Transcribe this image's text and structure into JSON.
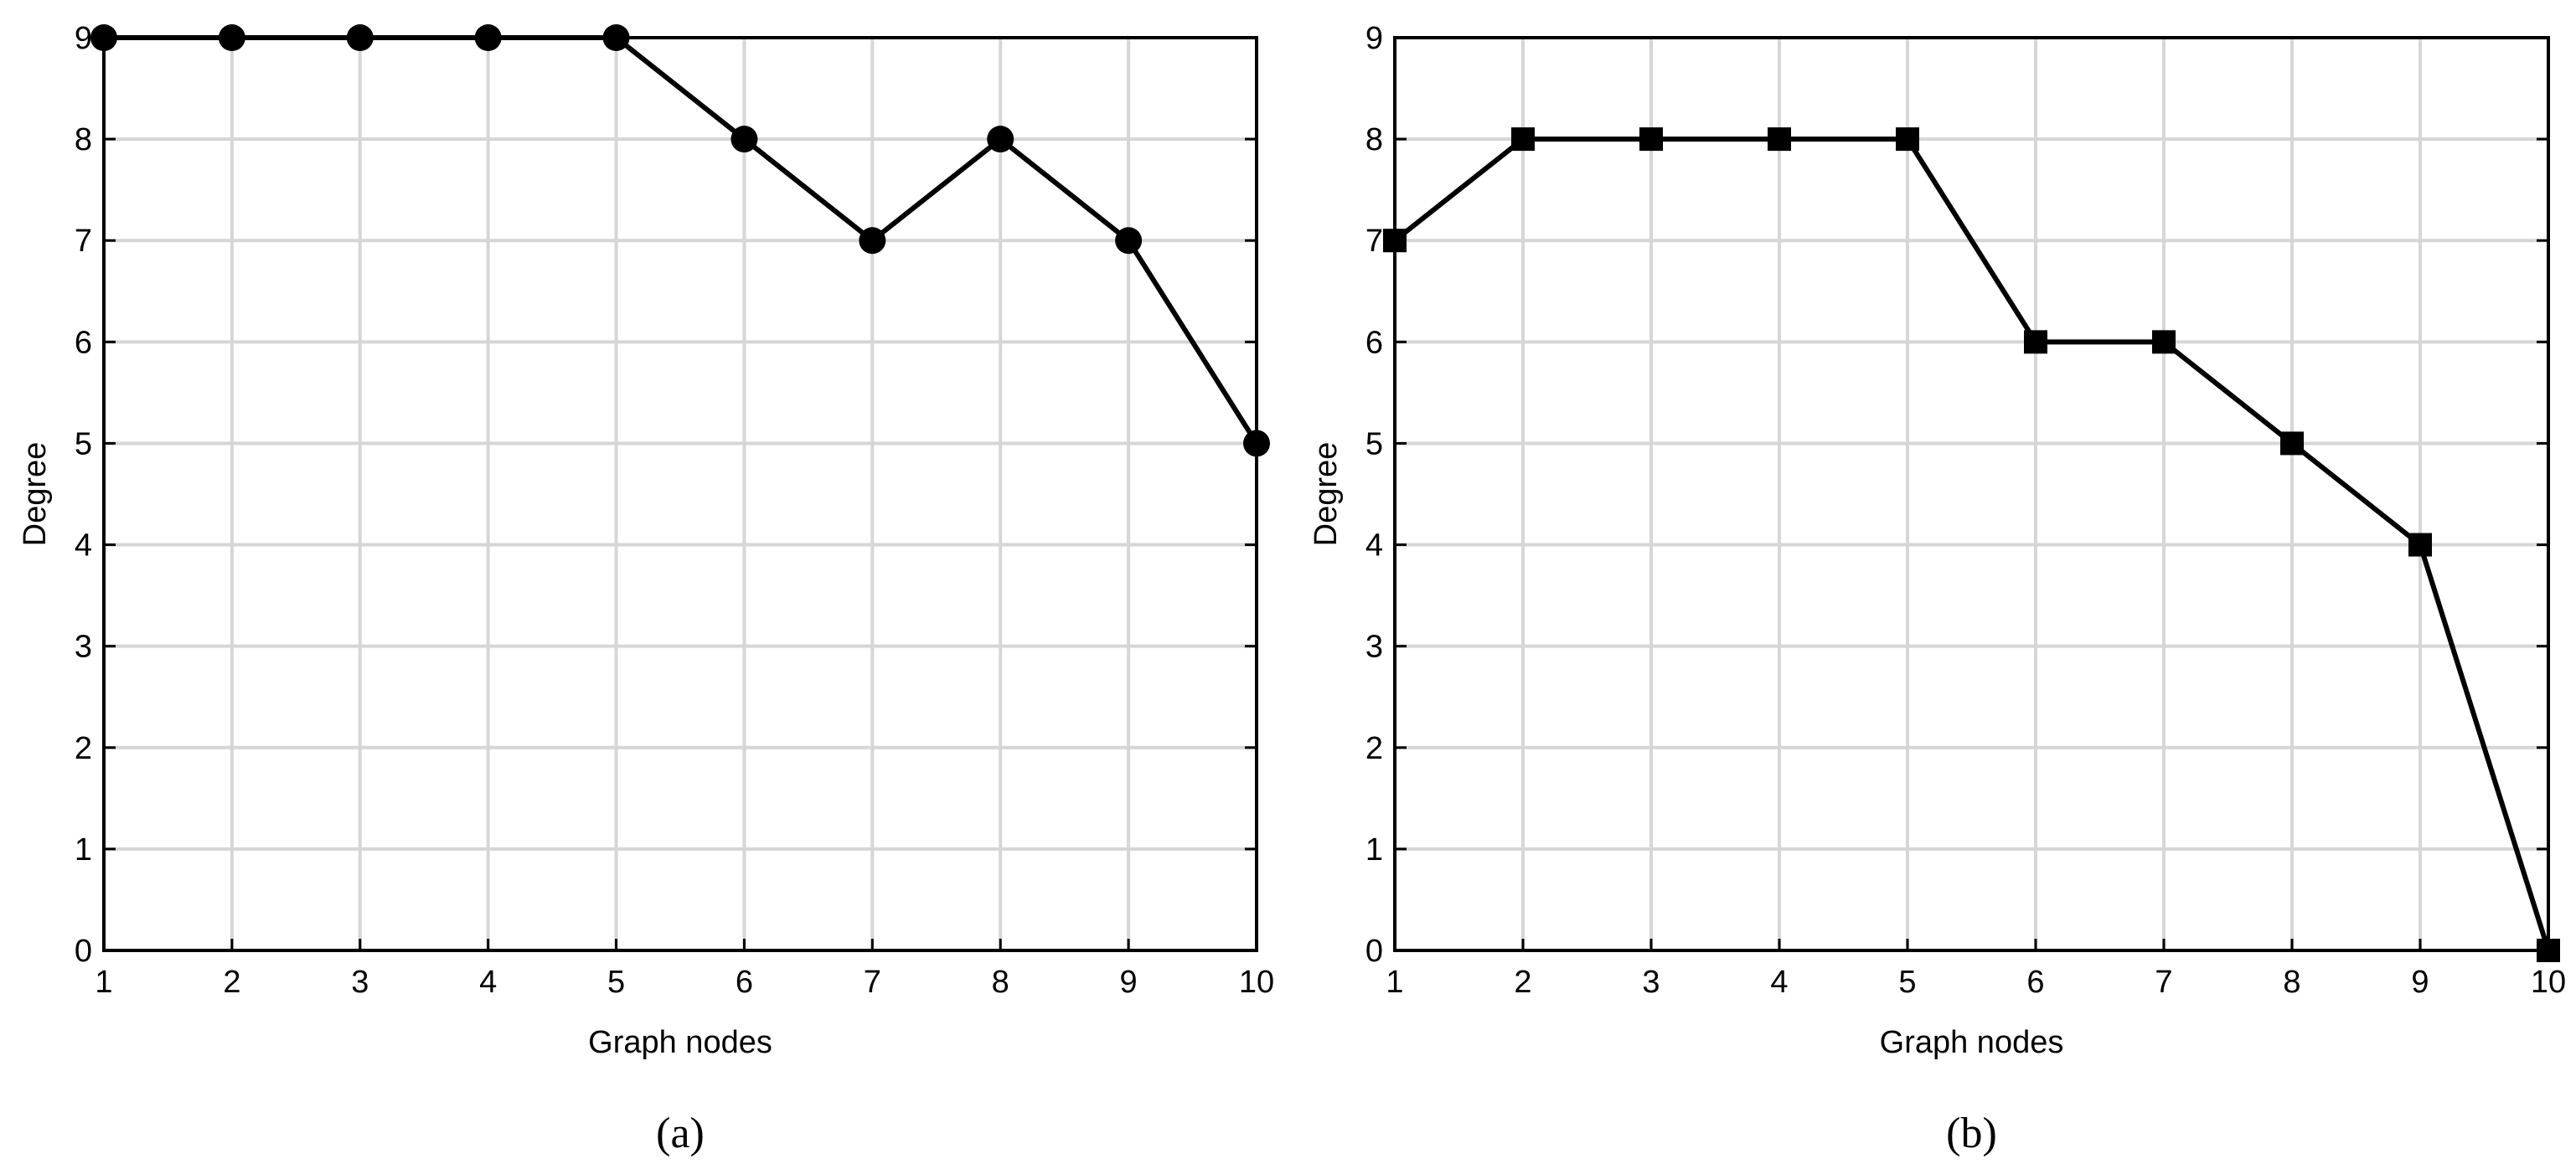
{
  "chart_data": [
    {
      "type": "line",
      "caption": "(a)",
      "xlabel": "Graph nodes",
      "ylabel": "Degree",
      "x": [
        1,
        2,
        3,
        4,
        5,
        6,
        7,
        8,
        9,
        10
      ],
      "series": [
        {
          "color": "#000000",
          "marker": "circle",
          "values": [
            9,
            9,
            9,
            9,
            9,
            8,
            7,
            8,
            7,
            5
          ]
        }
      ],
      "xlim": [
        1,
        10
      ],
      "xticks": [
        1,
        2,
        3,
        4,
        5,
        6,
        7,
        8,
        9,
        10
      ],
      "ylim": [
        0,
        9
      ],
      "yticks": [
        0,
        1,
        2,
        3,
        4,
        5,
        6,
        7,
        8,
        9
      ],
      "grid": true
    },
    {
      "type": "line",
      "caption": "(b)",
      "xlabel": "Graph nodes",
      "ylabel": "Degree",
      "x": [
        1,
        2,
        3,
        4,
        5,
        6,
        7,
        8,
        9,
        10
      ],
      "series": [
        {
          "color": "#000000",
          "marker": "square",
          "values": [
            7,
            8,
            8,
            8,
            8,
            6,
            6,
            5,
            4,
            0
          ]
        }
      ],
      "xlim": [
        1,
        10
      ],
      "xticks": [
        1,
        2,
        3,
        4,
        5,
        6,
        7,
        8,
        9,
        10
      ],
      "ylim": [
        0,
        9
      ],
      "yticks": [
        0,
        1,
        2,
        3,
        4,
        5,
        6,
        7,
        8,
        9
      ],
      "grid": true
    }
  ]
}
